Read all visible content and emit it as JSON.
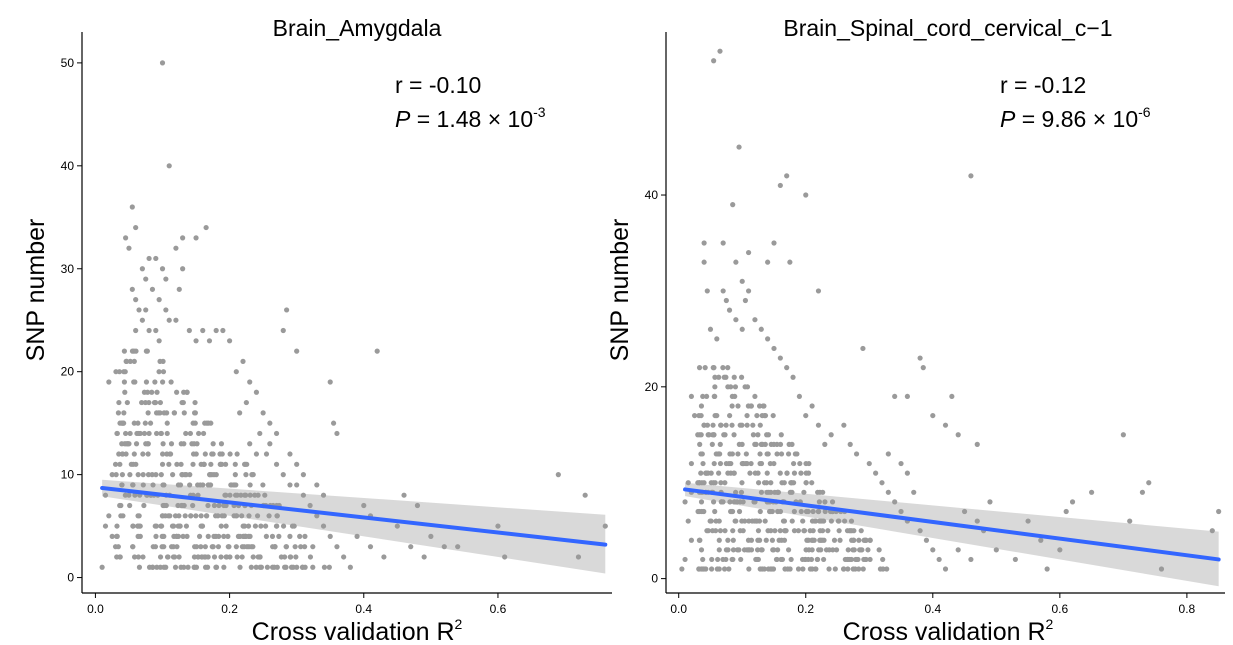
{
  "chart_data": [
    {
      "type": "scatter",
      "title": "Brain_Amygdala",
      "xlabel": "Cross validation R",
      "xlabel_sup": "2",
      "ylabel": "SNP number",
      "xlim": [
        -0.02,
        0.77
      ],
      "ylim": [
        -1.5,
        53
      ],
      "xticks": [
        "0.0",
        "0.2",
        "0.4",
        "0.6"
      ],
      "xtick_values": [
        0,
        0.2,
        0.4,
        0.6
      ],
      "yticks": [
        "0",
        "10",
        "20",
        "30",
        "40",
        "50"
      ],
      "ytick_values": [
        0,
        10,
        20,
        30,
        40,
        50
      ],
      "annotation": {
        "r": "r = -0.10",
        "p_label": "P",
        "p_text": " = 1.48 × 10",
        "p_exp": "-3"
      },
      "fit": {
        "x": [
          0.01,
          0.76
        ],
        "y": [
          8.7,
          3.2
        ],
        "ci_lower": [
          7.9,
          0.4
        ],
        "ci_upper": [
          9.5,
          6.1
        ]
      },
      "points": [
        [
          0.1,
          50
        ],
        [
          0.11,
          40
        ],
        [
          0.055,
          36
        ],
        [
          0.045,
          33
        ],
        [
          0.06,
          34
        ],
        [
          0.05,
          32
        ],
        [
          0.13,
          33
        ],
        [
          0.12,
          32
        ],
        [
          0.165,
          34
        ],
        [
          0.15,
          33
        ],
        [
          0.08,
          31
        ],
        [
          0.09,
          31
        ],
        [
          0.1,
          30
        ],
        [
          0.105,
          29
        ],
        [
          0.13,
          30
        ],
        [
          0.07,
          30
        ],
        [
          0.075,
          29
        ],
        [
          0.085,
          28
        ],
        [
          0.095,
          27
        ],
        [
          0.125,
          28
        ],
        [
          0.055,
          28
        ],
        [
          0.06,
          27
        ],
        [
          0.065,
          26
        ],
        [
          0.07,
          25
        ],
        [
          0.075,
          26
        ],
        [
          0.105,
          26
        ],
        [
          0.11,
          25
        ],
        [
          0.12,
          25
        ],
        [
          0.06,
          24
        ],
        [
          0.08,
          24
        ],
        [
          0.09,
          24
        ],
        [
          0.095,
          23
        ],
        [
          0.14,
          24
        ],
        [
          0.15,
          23
        ],
        [
          0.16,
          24
        ],
        [
          0.17,
          23
        ],
        [
          0.18,
          24
        ],
        [
          0.19,
          24
        ],
        [
          0.2,
          23
        ],
        [
          0.28,
          24
        ],
        [
          0.285,
          26
        ],
        [
          0.3,
          22
        ],
        [
          0.42,
          22
        ],
        [
          0.35,
          19
        ],
        [
          0.355,
          15
        ],
        [
          0.36,
          14
        ],
        [
          0.255,
          12
        ],
        [
          0.29,
          9
        ],
        [
          0.4,
          7
        ],
        [
          0.41,
          6
        ],
        [
          0.46,
          8
        ],
        [
          0.48,
          7
        ],
        [
          0.5,
          4
        ],
        [
          0.52,
          3
        ],
        [
          0.54,
          3
        ],
        [
          0.6,
          5
        ],
        [
          0.61,
          2
        ],
        [
          0.69,
          10
        ],
        [
          0.73,
          8
        ],
        [
          0.72,
          2
        ],
        [
          0.76,
          5
        ],
        [
          0.02,
          19
        ],
        [
          0.035,
          17
        ],
        [
          0.04,
          15
        ],
        [
          0.045,
          14
        ],
        [
          0.05,
          13
        ],
        [
          0.03,
          11
        ],
        [
          0.025,
          10
        ],
        [
          0.015,
          8
        ],
        [
          0.02,
          6
        ],
        [
          0.015,
          5
        ],
        [
          0.025,
          4
        ],
        [
          0.03,
          3
        ],
        [
          0.01,
          1
        ],
        [
          0.22,
          21
        ],
        [
          0.21,
          20
        ],
        [
          0.23,
          19
        ],
        [
          0.225,
          17
        ],
        [
          0.215,
          16
        ],
        [
          0.24,
          18
        ],
        [
          0.25,
          16
        ],
        [
          0.245,
          14
        ],
        [
          0.26,
          13
        ],
        [
          0.27,
          11
        ],
        [
          0.28,
          10
        ],
        [
          0.3,
          9
        ],
        [
          0.31,
          8
        ],
        [
          0.32,
          7
        ],
        [
          0.33,
          6
        ],
        [
          0.34,
          5
        ],
        [
          0.35,
          4
        ],
        [
          0.36,
          3
        ],
        [
          0.37,
          2
        ],
        [
          0.38,
          1
        ],
        [
          0.39,
          4
        ],
        [
          0.41,
          3
        ],
        [
          0.43,
          2
        ],
        [
          0.45,
          5
        ],
        [
          0.47,
          3
        ],
        [
          0.49,
          2
        ],
        [
          0.33,
          9
        ],
        [
          0.34,
          8
        ],
        [
          0.31,
          10
        ],
        [
          0.3,
          11
        ],
        [
          0.29,
          12
        ],
        [
          0.27,
          14
        ],
        [
          0.26,
          15
        ],
        [
          0.24,
          12
        ],
        [
          0.23,
          13
        ]
      ],
      "dense_region": {
        "x_range": [
          0.01,
          0.33
        ],
        "y_range": [
          1,
          22
        ]
      }
    },
    {
      "type": "scatter",
      "title": "Brain_Spinal_cord_cervical_c−1",
      "xlabel": "Cross validation R",
      "xlabel_sup": "2",
      "ylabel": "SNP number",
      "xlim": [
        -0.02,
        0.86
      ],
      "ylim": [
        -1.5,
        57
      ],
      "xticks": [
        "0.0",
        "0.2",
        "0.4",
        "0.6",
        "0.8"
      ],
      "xtick_values": [
        0,
        0.2,
        0.4,
        0.6,
        0.8
      ],
      "yticks": [
        "0",
        "20",
        "40"
      ],
      "ytick_values": [
        0,
        20,
        40
      ],
      "annotation": {
        "r": "r = -0.12",
        "p_label": "P",
        "p_text": " = 9.86 × 10",
        "p_exp": "-6"
      },
      "fit": {
        "x": [
          0.01,
          0.85
        ],
        "y": [
          9.3,
          2.0
        ],
        "ci_lower": [
          8.6,
          -0.8
        ],
        "ci_upper": [
          10.0,
          4.9
        ]
      },
      "points": [
        [
          0.065,
          55
        ],
        [
          0.055,
          54
        ],
        [
          0.095,
          45
        ],
        [
          0.085,
          39
        ],
        [
          0.17,
          42
        ],
        [
          0.16,
          41
        ],
        [
          0.2,
          40
        ],
        [
          0.46,
          42
        ],
        [
          0.04,
          35
        ],
        [
          0.07,
          35
        ],
        [
          0.11,
          34
        ],
        [
          0.09,
          33
        ],
        [
          0.15,
          35
        ],
        [
          0.14,
          33
        ],
        [
          0.175,
          33
        ],
        [
          0.04,
          33
        ],
        [
          0.045,
          30
        ],
        [
          0.07,
          30
        ],
        [
          0.075,
          29
        ],
        [
          0.1,
          31
        ],
        [
          0.11,
          30
        ],
        [
          0.105,
          29
        ],
        [
          0.22,
          30
        ],
        [
          0.29,
          24
        ],
        [
          0.38,
          23
        ],
        [
          0.385,
          22
        ],
        [
          0.36,
          19
        ],
        [
          0.34,
          19
        ],
        [
          0.4,
          17
        ],
        [
          0.43,
          19
        ],
        [
          0.42,
          16
        ],
        [
          0.44,
          15
        ],
        [
          0.47,
          14
        ],
        [
          0.7,
          15
        ],
        [
          0.74,
          10
        ],
        [
          0.73,
          9
        ],
        [
          0.65,
          9
        ],
        [
          0.62,
          8
        ],
        [
          0.61,
          7
        ],
        [
          0.71,
          6
        ],
        [
          0.76,
          1
        ],
        [
          0.85,
          7
        ],
        [
          0.84,
          5
        ],
        [
          0.55,
          6
        ],
        [
          0.57,
          4
        ],
        [
          0.6,
          3
        ],
        [
          0.58,
          1
        ],
        [
          0.53,
          2
        ],
        [
          0.5,
          3
        ],
        [
          0.48,
          5
        ],
        [
          0.02,
          19
        ],
        [
          0.025,
          17
        ],
        [
          0.03,
          15
        ],
        [
          0.035,
          13
        ],
        [
          0.02,
          12
        ],
        [
          0.015,
          10
        ],
        [
          0.02,
          9
        ],
        [
          0.01,
          8
        ],
        [
          0.015,
          6
        ],
        [
          0.02,
          4
        ],
        [
          0.01,
          2
        ],
        [
          0.005,
          1
        ],
        [
          0.26,
          16
        ],
        [
          0.27,
          14
        ],
        [
          0.28,
          13
        ],
        [
          0.3,
          12
        ],
        [
          0.31,
          11
        ],
        [
          0.32,
          10
        ],
        [
          0.33,
          9
        ],
        [
          0.34,
          8
        ],
        [
          0.35,
          7
        ],
        [
          0.36,
          6
        ],
        [
          0.38,
          5
        ],
        [
          0.39,
          4
        ],
        [
          0.4,
          3
        ],
        [
          0.41,
          2
        ],
        [
          0.42,
          1
        ],
        [
          0.44,
          3
        ],
        [
          0.46,
          2
        ],
        [
          0.45,
          7
        ],
        [
          0.47,
          6
        ],
        [
          0.49,
          8
        ],
        [
          0.37,
          9
        ],
        [
          0.36,
          11
        ],
        [
          0.35,
          12
        ],
        [
          0.33,
          13
        ],
        [
          0.24,
          15
        ],
        [
          0.23,
          14
        ],
        [
          0.22,
          16
        ],
        [
          0.21,
          18
        ],
        [
          0.2,
          17
        ],
        [
          0.19,
          19
        ],
        [
          0.18,
          21
        ],
        [
          0.17,
          22
        ],
        [
          0.15,
          24
        ],
        [
          0.16,
          23
        ],
        [
          0.14,
          25
        ],
        [
          0.13,
          26
        ],
        [
          0.12,
          27
        ],
        [
          0.1,
          26
        ],
        [
          0.09,
          27
        ],
        [
          0.08,
          28
        ],
        [
          0.06,
          25
        ],
        [
          0.05,
          26
        ]
      ],
      "dense_region": {
        "x_range": [
          0.01,
          0.32
        ],
        "y_range": [
          1,
          22
        ]
      }
    }
  ]
}
